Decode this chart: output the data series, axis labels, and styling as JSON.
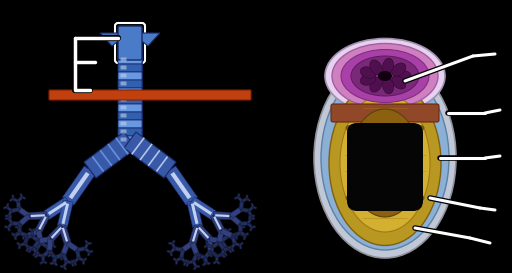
{
  "background_color": "#000000",
  "fig_width": 5.12,
  "fig_height": 2.73,
  "dpi": 100,
  "trachea_blue": "#4a7bc8",
  "trachea_dark": "#1a2a6a",
  "trachea_mid": "#3060b0",
  "trachea_light": "#6898e0",
  "trachea_white": "#c0d0f0",
  "bronchi_dark": "#203060",
  "bronchi_mid": "#304080",
  "bronchi_blue": "#3858a8",
  "cut_color": "#c04010",
  "cut_dashed": "#a03010",
  "cs_bg_outer": "#b8c8e0",
  "cs_bg_mid": "#c8d8f0",
  "cs_cartilage_out": "#b89820",
  "cs_cartilage_in": "#d4b030",
  "cs_cartilage_light": "#e8cc50",
  "cs_mucosa": "#8b6010",
  "cs_lumen": "#050505",
  "cs_top_pale": "#e8d0f0",
  "cs_top_pink": "#d080c0",
  "cs_top_purple": "#a840a8",
  "cs_top_dark": "#7a2878",
  "cs_top_darker": "#501050",
  "cs_connector": "#904828",
  "cs_blue_layer": "#8ab0d8",
  "cs_gray_layer": "#c0c8d8",
  "pointer_white": "#ffffff",
  "pointer_black": "#000000"
}
